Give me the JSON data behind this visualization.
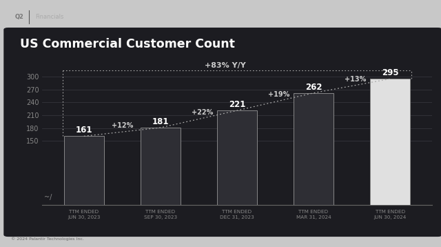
{
  "title": "US Commercial Customer Count",
  "categories": [
    "TTM ENDED\nJUN 30, 2023",
    "TTM ENDED\nSEP 30, 2023",
    "TTM ENDED\nDEC 31, 2023",
    "TTM ENDED\nMAR 31, 2024",
    "TTM ENDED\nJUN 30, 2024"
  ],
  "values": [
    161,
    181,
    221,
    262,
    295
  ],
  "growth_labels": [
    "+12%",
    "+22%",
    "+19%",
    "+13%"
  ],
  "yoy_label": "+83% Y/Y",
  "bar_colors": [
    "#2e2e34",
    "#2e2e34",
    "#2e2e34",
    "#2e2e34",
    "#e0e0e0"
  ],
  "bar_edge_color": "#888888",
  "bg_color": "#1c1c21",
  "outer_bg": "#c8c8c8",
  "text_color": "#ffffff",
  "muted_color": "#aaaaaa",
  "ytick_color": "#888888",
  "yticks": [
    150,
    180,
    210,
    240,
    270,
    300
  ],
  "ylim": [
    0,
    335
  ],
  "figsize": [
    6.4,
    3.58
  ],
  "dpi": 100,
  "footer_text": "© 2024 Palantir Technologies Inc."
}
